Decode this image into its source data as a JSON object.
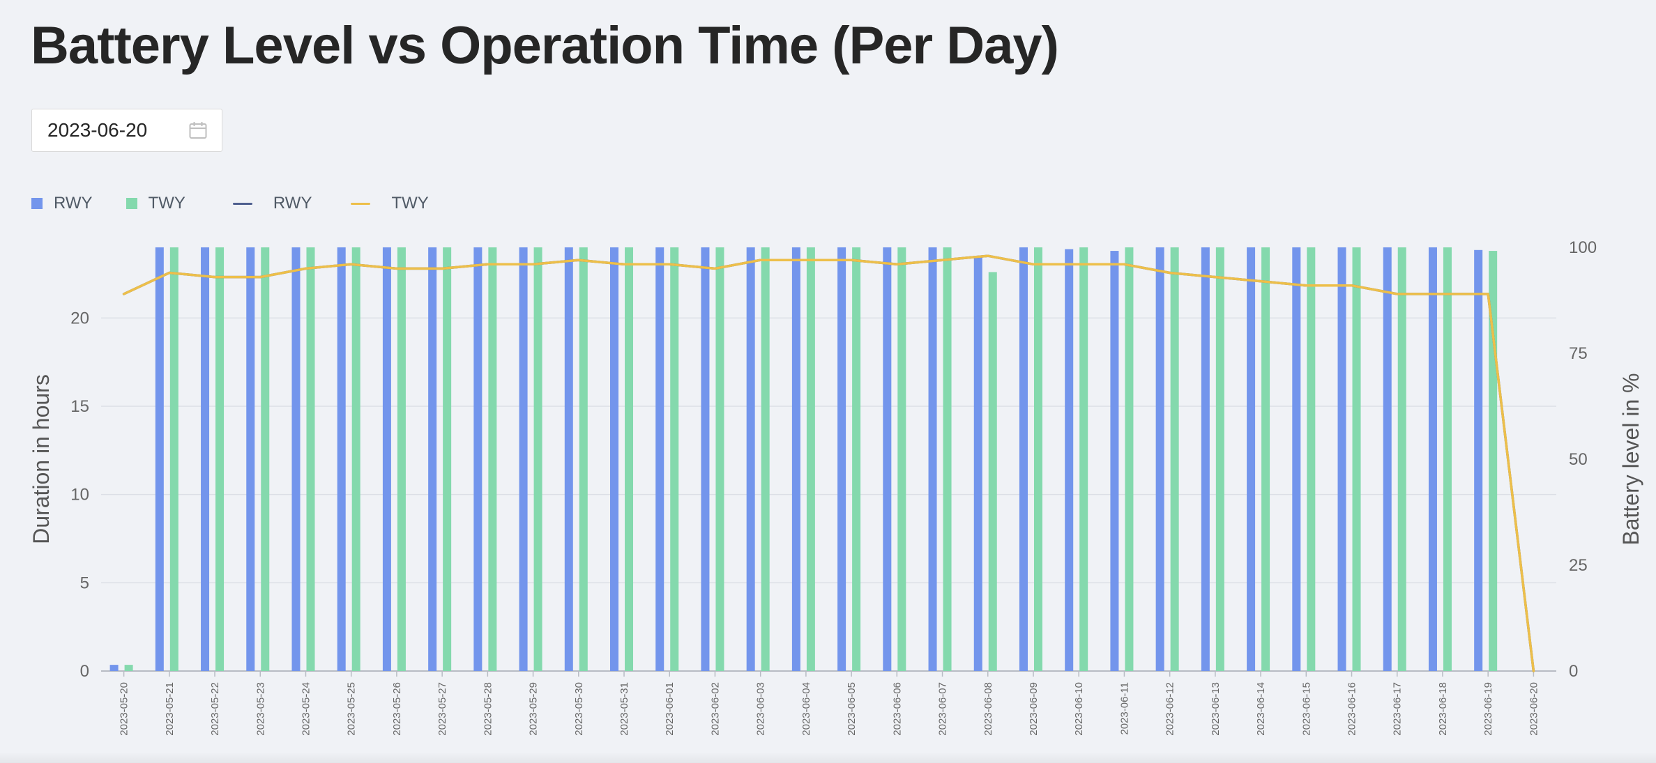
{
  "page": {
    "title": "Battery Level vs Operation Time (Per Day)"
  },
  "date_picker": {
    "value": "2023-06-20",
    "icon": "calendar-icon"
  },
  "colors": {
    "rwy_bar": "#7395ec",
    "twy_bar": "#84d9ad",
    "rwy_line": "#4e5f8f",
    "twy_line": "#edbf4a",
    "grid": "#dcdfe6",
    "axis_text": "#666666"
  },
  "legend": [
    {
      "label": "RWY",
      "kind": "bar",
      "series": "rwy_duration"
    },
    {
      "label": "TWY",
      "kind": "bar",
      "series": "twy_duration"
    },
    {
      "label": "RWY",
      "kind": "line",
      "series": "rwy_battery"
    },
    {
      "label": "TWY",
      "kind": "line",
      "series": "twy_battery"
    }
  ],
  "chart_data": {
    "type": "bar",
    "categories": [
      "2023-05-20",
      "2023-05-21",
      "2023-05-22",
      "2023-05-23",
      "2023-05-24",
      "2023-05-25",
      "2023-05-26",
      "2023-05-27",
      "2023-05-28",
      "2023-05-29",
      "2023-05-30",
      "2023-05-31",
      "2023-06-01",
      "2023-06-02",
      "2023-06-03",
      "2023-06-04",
      "2023-06-05",
      "2023-06-06",
      "2023-06-07",
      "2023-06-08",
      "2023-06-09",
      "2023-06-10",
      "2023-06-11",
      "2023-06-12",
      "2023-06-13",
      "2023-06-14",
      "2023-06-15",
      "2023-06-16",
      "2023-06-17",
      "2023-06-18",
      "2023-06-19",
      "2023-06-20"
    ],
    "ylabel": "Duration in hours",
    "y2label": "Battery level in %",
    "ylim": [
      0,
      24
    ],
    "yticks": [
      0,
      5,
      10,
      15,
      20
    ],
    "y2lim": [
      0,
      100
    ],
    "y2ticks": [
      0,
      25,
      50,
      75,
      100
    ],
    "grid": true,
    "legend_position": "top-left",
    "series": [
      {
        "name": "RWY",
        "type": "bar",
        "axis": "left",
        "values": [
          0.35,
          24,
          24,
          24,
          24,
          24,
          24,
          24,
          24,
          24,
          24,
          24,
          24,
          24,
          24,
          24,
          24,
          24,
          24,
          23.5,
          24,
          23.9,
          23.8,
          24,
          24,
          24,
          24,
          24,
          24,
          24,
          23.85,
          0
        ]
      },
      {
        "name": "TWY",
        "type": "bar",
        "axis": "left",
        "values": [
          0.35,
          24,
          24,
          24,
          24,
          24,
          24,
          24,
          24,
          24,
          24,
          24,
          24,
          24,
          24,
          24,
          24,
          24,
          24,
          22.6,
          24,
          24,
          24,
          24,
          24,
          24,
          24,
          24,
          24,
          24,
          23.8,
          0
        ]
      },
      {
        "name": "RWY",
        "type": "line",
        "axis": "right",
        "values": [
          89,
          94,
          93,
          93,
          95,
          96,
          95,
          95,
          96,
          96,
          97,
          96,
          96,
          95,
          97,
          97,
          97,
          96,
          97,
          98,
          96,
          96,
          96,
          94,
          93,
          92,
          91,
          91,
          89,
          89,
          89,
          0
        ]
      },
      {
        "name": "TWY",
        "type": "line",
        "axis": "right",
        "values": [
          89,
          94,
          93,
          93,
          95,
          96,
          95,
          95,
          96,
          96,
          97,
          96,
          96,
          95,
          97,
          97,
          97,
          96,
          97,
          98,
          96,
          96,
          96,
          94,
          93,
          92,
          91,
          91,
          89,
          89,
          89,
          0
        ]
      }
    ]
  }
}
